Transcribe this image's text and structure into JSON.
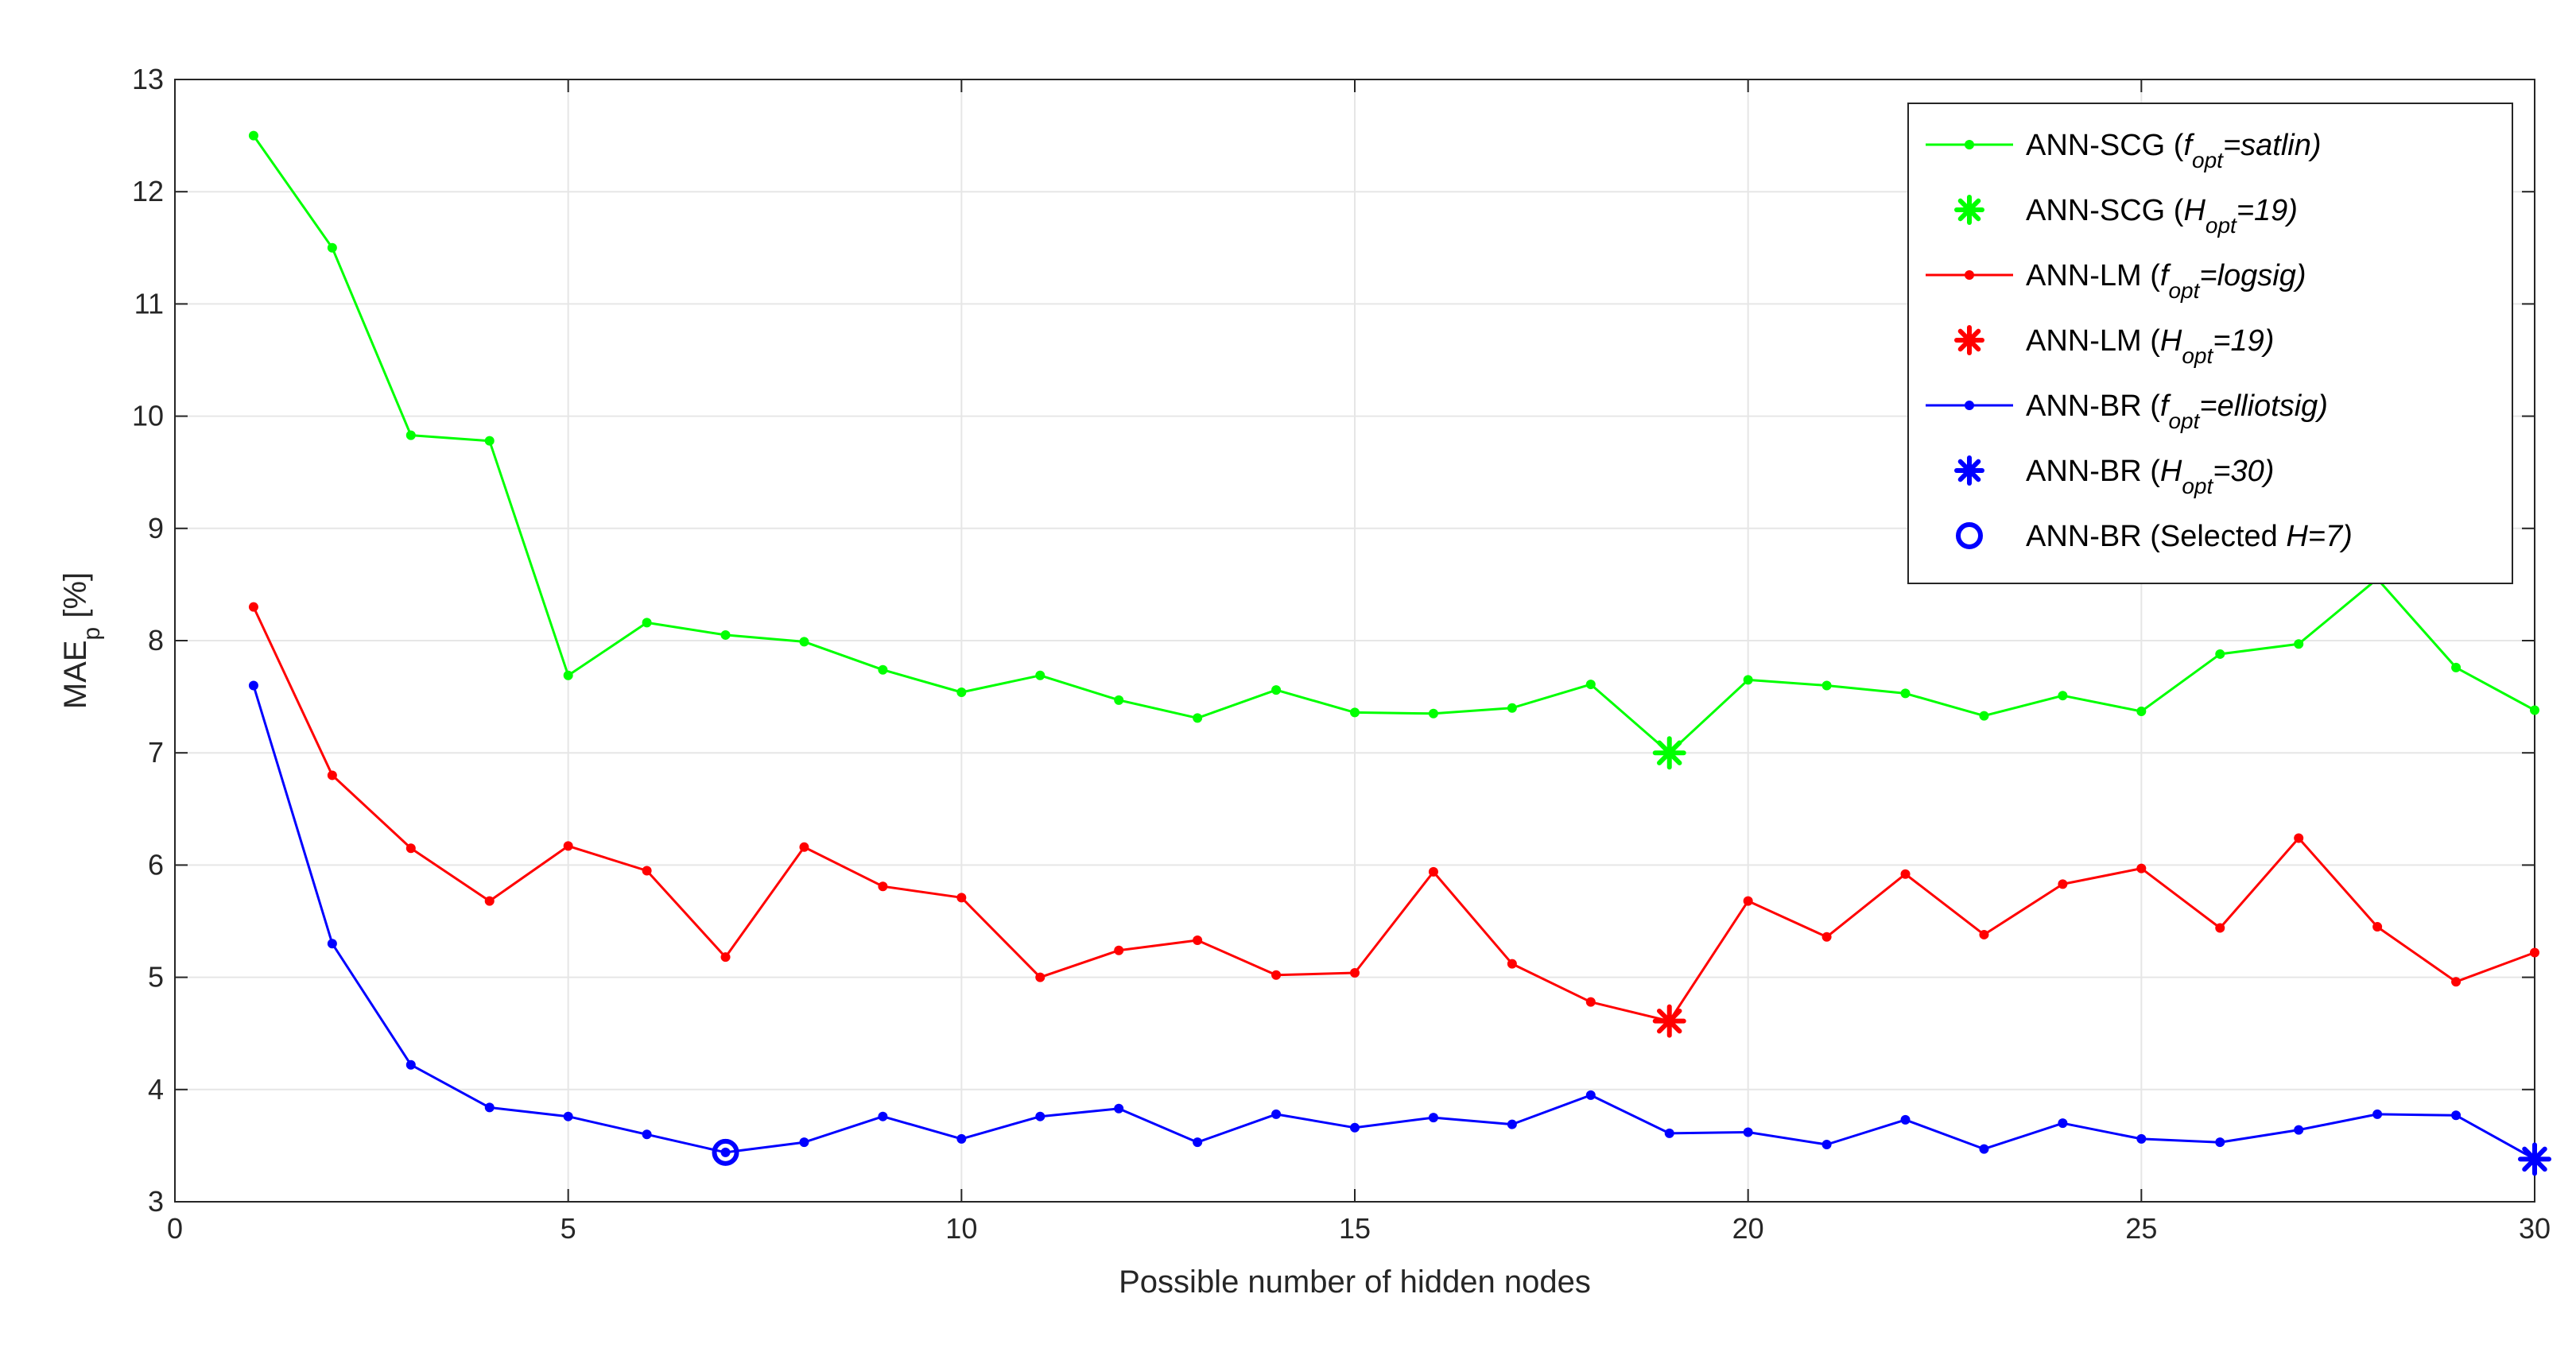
{
  "chart_data": {
    "type": "line",
    "title": "",
    "xlabel": "Possible number of hidden nodes",
    "ylabel": {
      "main": "MAE",
      "sub": "p",
      "unit": "[%]"
    },
    "xlim": [
      0,
      30
    ],
    "ylim": [
      3,
      13
    ],
    "x_ticks": [
      0,
      5,
      10,
      15,
      20,
      25,
      30
    ],
    "y_ticks": [
      3,
      4,
      5,
      6,
      7,
      8,
      9,
      10,
      11,
      12,
      13
    ],
    "grid": true,
    "legend_position": "top-right",
    "x": [
      1,
      2,
      3,
      4,
      5,
      6,
      7,
      8,
      9,
      10,
      11,
      12,
      13,
      14,
      15,
      16,
      17,
      18,
      19,
      20,
      21,
      22,
      23,
      24,
      25,
      26,
      27,
      28,
      29,
      30
    ],
    "series": [
      {
        "name": "ANN-SCG (f_opt=satlin)",
        "legend": {
          "pre": "ANN-SCG (",
          "var": "f",
          "sub": "opt",
          "post": "=satlin)"
        },
        "color": "#00ff00",
        "values": [
          12.5,
          11.5,
          9.83,
          9.78,
          7.69,
          8.16,
          8.05,
          7.99,
          7.74,
          7.54,
          7.69,
          7.47,
          7.31,
          7.56,
          7.36,
          7.35,
          7.4,
          7.61,
          7.0,
          7.65,
          7.6,
          7.53,
          7.33,
          7.51,
          7.37,
          7.88,
          7.97,
          8.55,
          7.76,
          7.38
        ]
      },
      {
        "name": "ANN-LM (f_opt=logsig)",
        "legend": {
          "pre": "ANN-LM (",
          "var": "f",
          "sub": "opt",
          "post": "=logsig)"
        },
        "color": "#ff0000",
        "values": [
          8.3,
          6.8,
          6.15,
          5.68,
          6.17,
          5.95,
          5.18,
          6.16,
          5.81,
          5.71,
          5.0,
          5.24,
          5.33,
          5.02,
          5.04,
          5.94,
          5.12,
          4.78,
          4.61,
          5.68,
          5.36,
          5.92,
          5.38,
          5.83,
          5.97,
          5.44,
          6.24,
          5.45,
          4.96,
          5.22
        ]
      },
      {
        "name": "ANN-BR (f_opt=elliotsig)",
        "legend": {
          "pre": "ANN-BR (",
          "var": "f",
          "sub": "opt",
          "post": "=elliotsig)"
        },
        "color": "#0000ff",
        "values": [
          7.6,
          5.3,
          4.22,
          3.84,
          3.76,
          3.6,
          3.44,
          3.53,
          3.76,
          3.56,
          3.76,
          3.83,
          3.53,
          3.78,
          3.66,
          3.75,
          3.69,
          3.95,
          3.61,
          3.62,
          3.51,
          3.73,
          3.47,
          3.7,
          3.56,
          3.53,
          3.64,
          3.78,
          3.77,
          3.38
        ]
      }
    ],
    "markers": [
      {
        "name": "ANN-SCG (H_opt=19)",
        "legend": {
          "pre": "ANN-SCG (",
          "var": "H",
          "sub": "opt",
          "post": "=19)"
        },
        "shape": "asterisk",
        "color": "#00ff00",
        "x": 19,
        "y": 7.0
      },
      {
        "name": "ANN-LM (H_opt=19)",
        "legend": {
          "pre": "ANN-LM (",
          "var": "H",
          "sub": "opt",
          "post": "=19)"
        },
        "shape": "asterisk",
        "color": "#ff0000",
        "x": 19,
        "y": 4.61
      },
      {
        "name": "ANN-BR (H_opt=30)",
        "legend": {
          "pre": "ANN-BR (",
          "var": "H",
          "sub": "opt",
          "post": "=30)"
        },
        "shape": "asterisk",
        "color": "#0000ff",
        "x": 30,
        "y": 3.38
      },
      {
        "name": "ANN-BR (Selected H=7)",
        "legend": {
          "pre": "ANN-BR (Selected ",
          "var": "H",
          "sub": "",
          "post": "=7)"
        },
        "shape": "circle",
        "color": "#0000ff",
        "x": 7,
        "y": 3.44
      }
    ],
    "legend_order": [
      "s0",
      "m0",
      "s1",
      "m1",
      "s2",
      "m2",
      "m3"
    ]
  }
}
